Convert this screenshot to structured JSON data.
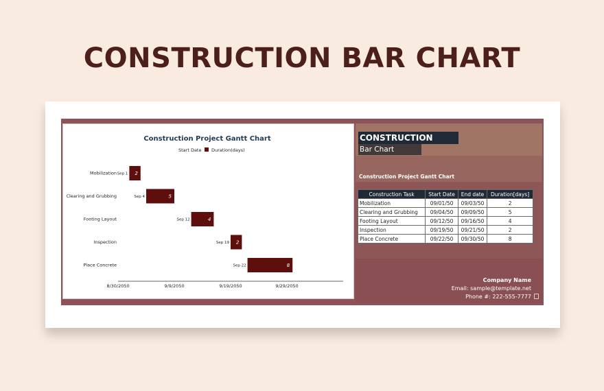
{
  "page": {
    "title": "CONSTRUCTION BAR CHART"
  },
  "colors": {
    "background": "#f9ebe0",
    "title": "#4d1f1c",
    "bar": "#5e0f0d",
    "sheet": "#8e5358",
    "header_dark": "#1f2a36"
  },
  "panel": {
    "title_line1": "CONSTRUCTION",
    "title_line2": "Bar Chart",
    "subtitle": "Construction Project Gantt Chart"
  },
  "table": {
    "headers": [
      "Construction Task",
      "Start Date",
      "End date",
      "Duration[days]"
    ],
    "rows": [
      [
        "Mobilization",
        "09/01/50",
        "09/03/50",
        "2"
      ],
      [
        "Clearing and Grubbing",
        "09/04/50",
        "09/09/50",
        "5"
      ],
      [
        "Footing Layout",
        "09/12/50",
        "09/16/50",
        "4"
      ],
      [
        "Inspection",
        "09/19/50",
        "09/21/50",
        "2"
      ],
      [
        "Place Concrete",
        "09/22/50",
        "09/30/50",
        "8"
      ]
    ]
  },
  "company": {
    "name": "Company Name",
    "email": "Email: sample@template.net",
    "phone": "Phone #: 222-555-7777"
  },
  "chart_data": {
    "type": "bar",
    "orientation": "horizontal-stacked-gantt",
    "title": "Construction Project Gantt Chart",
    "legend": [
      "Start Date",
      "Duration(days)"
    ],
    "legend_position": "top",
    "categories": [
      "Mobilization",
      "Clearing and Grubbing",
      "Footing Layout",
      "Inspection",
      "Place Concrete"
    ],
    "start_labels": [
      "Sep 1",
      "Sep 4",
      "Sep 12",
      "Sep 19",
      "Sep 22"
    ],
    "start_dates": [
      "2050-09-01",
      "2050-09-04",
      "2050-09-12",
      "2050-09-19",
      "2050-09-22"
    ],
    "durations": [
      2,
      5,
      4,
      2,
      8
    ],
    "x_ticks": [
      "8/30/2050",
      "9/9/2050",
      "9/19/2050",
      "9/29/2050"
    ],
    "x_tick_dates": [
      "2050-08-30",
      "2050-09-09",
      "2050-09-19",
      "2050-09-29"
    ],
    "xlim": [
      "2050-08-30",
      "2050-10-09"
    ],
    "grid": false,
    "xlabel": "",
    "ylabel": ""
  }
}
